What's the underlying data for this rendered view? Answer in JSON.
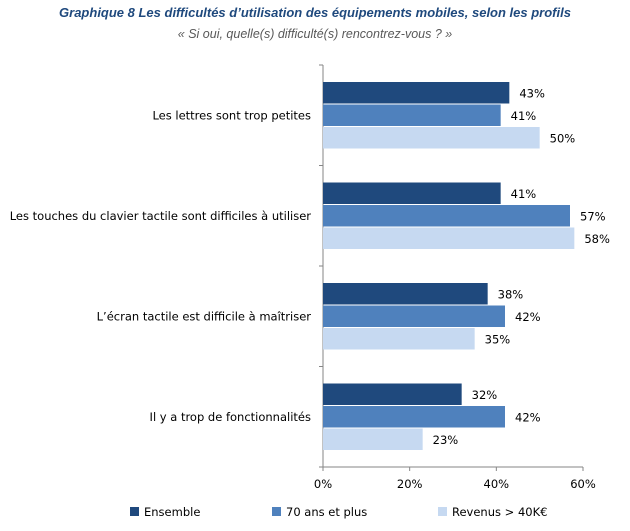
{
  "chart_data": {
    "type": "bar",
    "orientation": "horizontal",
    "title": "Graphique 8 Les difficultés d’utilisation  des équipements mobiles, selon les profils",
    "subtitle": "« Si oui, quelle(s) difficulté(s) rencontrez-vous ? »",
    "categories": [
      "Les lettres sont trop petites",
      "Les touches du clavier tactile sont difficiles à utiliser",
      "L’écran tactile est difficile à maîtriser",
      "Il y a trop de fonctionnalités"
    ],
    "series": [
      {
        "name": "Ensemble",
        "color": "#1f497d",
        "values": [
          43,
          41,
          38,
          32
        ]
      },
      {
        "name": "70 ans et plus",
        "color": "#4f81bd",
        "values": [
          41,
          57,
          42,
          42
        ]
      },
      {
        "name": "Revenus > 40K€",
        "color": "#c6d9f1",
        "values": [
          50,
          58,
          35,
          23
        ]
      }
    ],
    "xlim": [
      0,
      60
    ],
    "xticks": [
      0,
      20,
      40,
      60
    ],
    "value_suffix": "%",
    "legend_position": "bottom",
    "grid": false
  }
}
